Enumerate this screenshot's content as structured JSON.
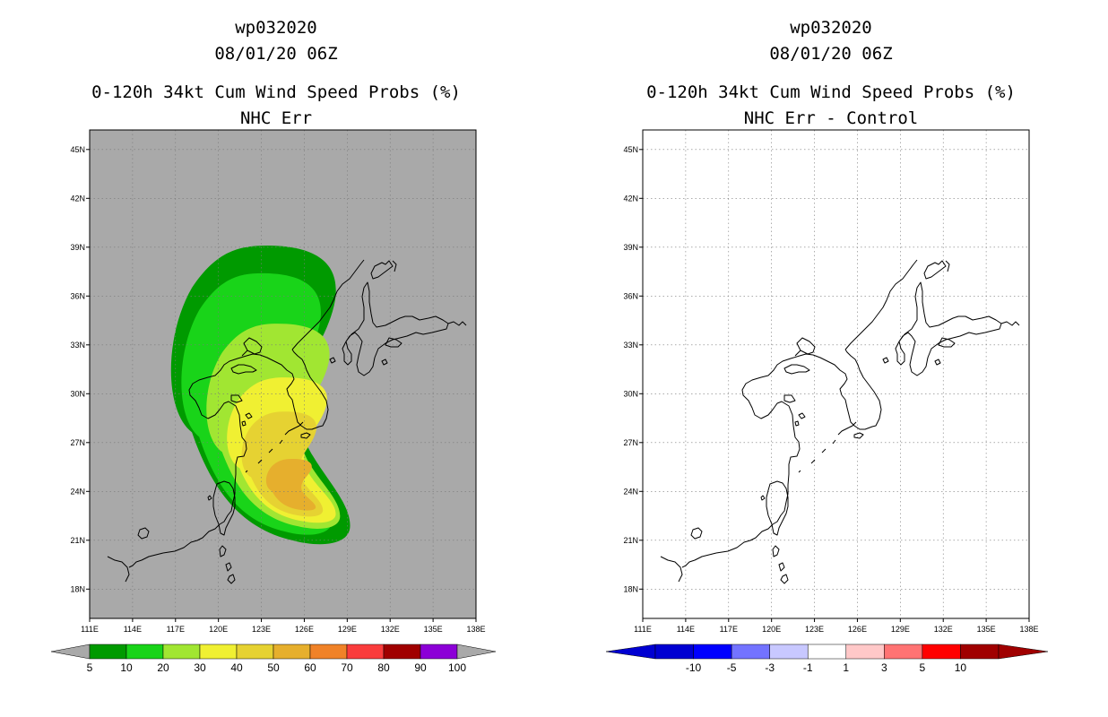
{
  "chart_data": [
    {
      "type": "contour-map",
      "title_lines": [
        "wp032020",
        "08/01/20 06Z",
        "0-120h 34kt Cum Wind Speed Probs (%)",
        "NHC Err"
      ],
      "background": "#a9a9a9",
      "x_ticks": [
        "111E",
        "114E",
        "117E",
        "120E",
        "123E",
        "126E",
        "129E",
        "132E",
        "135E",
        "138E"
      ],
      "y_ticks": [
        "45N",
        "42N",
        "39N",
        "36N",
        "33N",
        "30N",
        "27N",
        "24N",
        "21N",
        "18N"
      ],
      "lon_range": [
        111,
        138
      ],
      "lat_range": [
        16.2,
        46.2
      ],
      "colorbar": {
        "labels": [
          "5",
          "10",
          "20",
          "30",
          "40",
          "50",
          "60",
          "70",
          "80",
          "90",
          "100"
        ],
        "colors": [
          "#009a00",
          "#19d419",
          "#a1e632",
          "#f0f032",
          "#e6d232",
          "#e6af2d",
          "#f08228",
          "#fa3c3c",
          "#a00000",
          "#8c00d7"
        ],
        "end_color": "#a9a9a9"
      },
      "contours": [
        {
          "level": 5,
          "color": "#009a00",
          "center": [
            123.5,
            31.2
          ],
          "bounds_lon": [
            116.2,
            129.2
          ],
          "bounds_lat": [
            20.6,
            39.1
          ]
        },
        {
          "level": 10,
          "color": "#19d419",
          "center": [
            123.0,
            31.8
          ],
          "bounds_lon": [
            117.0,
            128.0
          ],
          "bounds_lat": [
            21.2,
            37.4
          ]
        },
        {
          "level": 20,
          "color": "#a1e632",
          "center": [
            123.4,
            28.4
          ],
          "bounds_lon": [
            118.8,
            128.5
          ],
          "bounds_lat": [
            21.6,
            34.3
          ]
        },
        {
          "level": 30,
          "color": "#f0f032",
          "center": [
            123.8,
            26.2
          ],
          "bounds_lon": [
            120.3,
            128.2
          ],
          "bounds_lat": [
            22.0,
            31.0
          ]
        },
        {
          "level": 40,
          "color": "#e6d232",
          "center": [
            124.3,
            25.0
          ],
          "bounds_lon": [
            121.4,
            127.3
          ],
          "bounds_lat": [
            22.4,
            28.9
          ]
        },
        {
          "level": 50,
          "color": "#e6af2d",
          "center": [
            125.0,
            24.2
          ],
          "bounds_lon": [
            123.2,
            126.8
          ],
          "bounds_lat": [
            22.8,
            26.0
          ]
        }
      ]
    },
    {
      "type": "contour-map",
      "title_lines": [
        "wp032020",
        "08/01/20 06Z",
        "0-120h 34kt Cum Wind Speed Probs (%)",
        "NHC Err - Control"
      ],
      "background": "#ffffff",
      "x_ticks": [
        "111E",
        "114E",
        "117E",
        "120E",
        "123E",
        "126E",
        "129E",
        "132E",
        "135E",
        "138E"
      ],
      "y_ticks": [
        "45N",
        "42N",
        "39N",
        "36N",
        "33N",
        "30N",
        "27N",
        "24N",
        "21N",
        "18N"
      ],
      "lon_range": [
        111,
        138
      ],
      "lat_range": [
        16.2,
        46.2
      ],
      "colorbar": {
        "labels": [
          "-10",
          "-5",
          "-3",
          "-1",
          "1",
          "3",
          "5",
          "10"
        ],
        "colors": [
          "#0000d2",
          "#0000ff",
          "#7373ff",
          "#c8c8ff",
          "#ffffff",
          "#ffc8c8",
          "#ff7373",
          "#ff0000",
          "#a00000"
        ],
        "low_end_color": "#0000d2",
        "high_end_color": "#a00000"
      },
      "contours": []
    }
  ]
}
